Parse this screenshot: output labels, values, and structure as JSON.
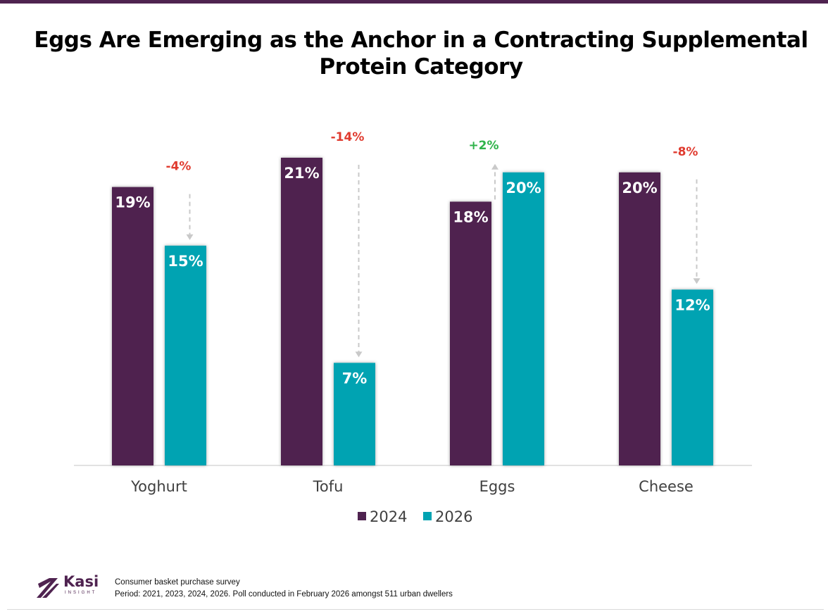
{
  "title_lines": [
    "Eggs Are Emerging as the Anchor in a Contracting Supplemental",
    "Protein Category"
  ],
  "colors": {
    "series_2024": "#4f2350",
    "series_2026": "#00a3b2",
    "negative": "#e03b2f",
    "positive": "#2fb34a",
    "arrow": "#c9c9c9",
    "accent": "#4f2350"
  },
  "chart_data": {
    "type": "bar",
    "title": "Eggs Are Emerging as the Anchor in a Contracting Supplemental Protein Category",
    "categories": [
      "Yoghurt",
      "Tofu",
      "Eggs",
      "Cheese"
    ],
    "series": [
      {
        "name": "2024",
        "values": [
          19,
          21,
          18,
          20
        ],
        "labels": [
          "19%",
          "21%",
          "18%",
          "20%"
        ]
      },
      {
        "name": "2026",
        "values": [
          15,
          7,
          20,
          12
        ],
        "labels": [
          "15%",
          "7%",
          "20%",
          "12%"
        ]
      }
    ],
    "changes": [
      "-4%",
      "-14%",
      "+2%",
      "-8%"
    ],
    "ylim": [
      0,
      21
    ],
    "legend_position": "bottom-center",
    "xlabel": "",
    "ylabel": ""
  },
  "footer": {
    "brand": "Kasi",
    "brand_sub": "INSIGHT",
    "source": "Consumer basket purchase survey",
    "note": "Period: 2021, 2023, 2024, 2026. Poll conducted in February 2026 amongst 511 urban dwellers"
  }
}
